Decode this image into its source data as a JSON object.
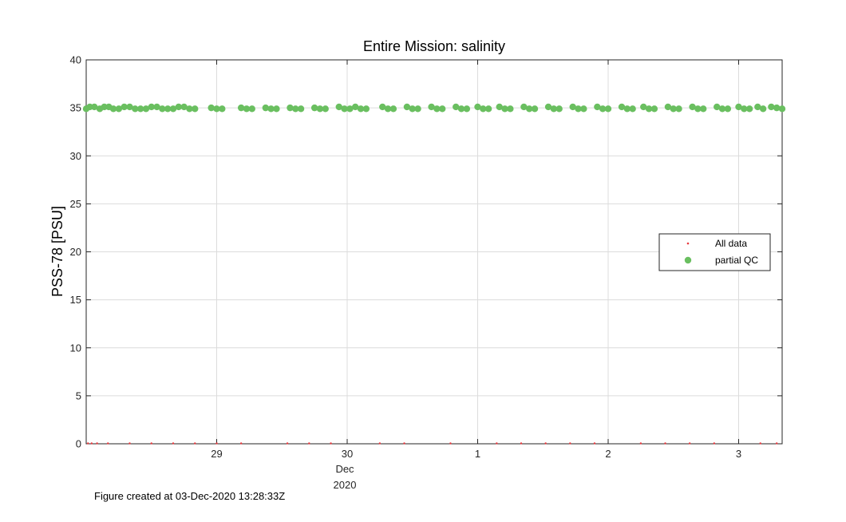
{
  "chart_data": {
    "type": "scatter",
    "title": "Entire Mission: salinity",
    "ylabel": "PSS-78 [PSU]",
    "xlabel": "",
    "x_date_label": "Dec",
    "x_year_label": "2020",
    "xlim": [
      "2020-11-28T00:00Z",
      "2020-12-03T08:00Z"
    ],
    "ylim": [
      0,
      40
    ],
    "yticks": [
      0,
      5,
      10,
      15,
      20,
      25,
      30,
      35,
      40
    ],
    "xticks": [
      {
        "t": "2020-11-29T00:00Z",
        "label": "29"
      },
      {
        "t": "2020-11-30T00:00Z",
        "label": "30"
      },
      {
        "t": "2020-12-01T00:00Z",
        "label": "1"
      },
      {
        "t": "2020-12-02T00:00Z",
        "label": "2"
      },
      {
        "t": "2020-12-03T00:00Z",
        "label": "3"
      }
    ],
    "grid": true,
    "legend_position": "right",
    "series": [
      {
        "name": "All data",
        "marker": "dot",
        "color": "#e8383d",
        "points": [
          [
            "2020-11-28T00:20Z",
            0
          ],
          [
            "2020-11-28T01:00Z",
            0
          ],
          [
            "2020-11-28T02:00Z",
            0
          ],
          [
            "2020-11-28T04:00Z",
            0
          ],
          [
            "2020-11-28T08:00Z",
            0
          ],
          [
            "2020-11-28T12:00Z",
            0
          ],
          [
            "2020-11-28T16:00Z",
            0
          ],
          [
            "2020-11-28T20:00Z",
            0
          ],
          [
            "2020-11-29T00:00Z",
            0
          ],
          [
            "2020-11-29T04:30Z",
            0
          ],
          [
            "2020-11-29T13:00Z",
            0
          ],
          [
            "2020-11-29T17:00Z",
            0
          ],
          [
            "2020-11-29T21:00Z",
            0
          ],
          [
            "2020-11-30T06:00Z",
            0
          ],
          [
            "2020-11-30T10:30Z",
            0
          ],
          [
            "2020-11-30T19:00Z",
            0
          ],
          [
            "2020-12-01T03:30Z",
            0
          ],
          [
            "2020-12-01T08:00Z",
            0
          ],
          [
            "2020-12-01T12:30Z",
            0
          ],
          [
            "2020-12-01T17:00Z",
            0
          ],
          [
            "2020-12-01T21:30Z",
            0
          ],
          [
            "2020-12-02T06:00Z",
            0
          ],
          [
            "2020-12-02T10:30Z",
            0
          ],
          [
            "2020-12-02T15:00Z",
            0
          ],
          [
            "2020-12-02T19:30Z",
            0
          ],
          [
            "2020-12-03T04:00Z",
            0
          ],
          [
            "2020-12-03T07:00Z",
            0
          ]
        ]
      },
      {
        "name": "partial QC",
        "marker": "circle",
        "color": "#6abf60",
        "points": [
          [
            "2020-11-28T00:00Z",
            34.9
          ],
          [
            "2020-11-28T00:40Z",
            35.1
          ],
          [
            "2020-11-28T01:30Z",
            35.1
          ],
          [
            "2020-11-28T02:30Z",
            34.9
          ],
          [
            "2020-11-28T03:20Z",
            35.1
          ],
          [
            "2020-11-28T04:10Z",
            35.1
          ],
          [
            "2020-11-28T05:00Z",
            34.9
          ],
          [
            "2020-11-28T06:00Z",
            34.9
          ],
          [
            "2020-11-28T07:00Z",
            35.1
          ],
          [
            "2020-11-28T08:00Z",
            35.1
          ],
          [
            "2020-11-28T09:00Z",
            34.9
          ],
          [
            "2020-11-28T10:00Z",
            34.9
          ],
          [
            "2020-11-28T11:00Z",
            34.9
          ],
          [
            "2020-11-28T12:00Z",
            35.1
          ],
          [
            "2020-11-28T13:00Z",
            35.1
          ],
          [
            "2020-11-28T14:00Z",
            34.9
          ],
          [
            "2020-11-28T15:00Z",
            34.9
          ],
          [
            "2020-11-28T16:00Z",
            34.9
          ],
          [
            "2020-11-28T17:00Z",
            35.1
          ],
          [
            "2020-11-28T18:00Z",
            35.1
          ],
          [
            "2020-11-28T19:00Z",
            34.9
          ],
          [
            "2020-11-28T20:00Z",
            34.9
          ],
          [
            "2020-11-28T23:00Z",
            35.0
          ],
          [
            "2020-11-29T00:00Z",
            34.9
          ],
          [
            "2020-11-29T01:00Z",
            34.9
          ],
          [
            "2020-11-29T04:30Z",
            35.0
          ],
          [
            "2020-11-29T05:30Z",
            34.9
          ],
          [
            "2020-11-29T06:30Z",
            34.9
          ],
          [
            "2020-11-29T09:00Z",
            35.0
          ],
          [
            "2020-11-29T10:00Z",
            34.9
          ],
          [
            "2020-11-29T11:00Z",
            34.9
          ],
          [
            "2020-11-29T13:30Z",
            35.0
          ],
          [
            "2020-11-29T14:30Z",
            34.9
          ],
          [
            "2020-11-29T15:30Z",
            34.9
          ],
          [
            "2020-11-29T18:00Z",
            35.0
          ],
          [
            "2020-11-29T19:00Z",
            34.9
          ],
          [
            "2020-11-29T20:00Z",
            34.9
          ],
          [
            "2020-11-29T22:30Z",
            35.1
          ],
          [
            "2020-11-29T23:30Z",
            34.9
          ],
          [
            "2020-11-30T00:30Z",
            34.9
          ],
          [
            "2020-11-30T01:30Z",
            35.1
          ],
          [
            "2020-11-30T02:30Z",
            34.9
          ],
          [
            "2020-11-30T03:30Z",
            34.9
          ],
          [
            "2020-11-30T06:30Z",
            35.1
          ],
          [
            "2020-11-30T07:30Z",
            34.9
          ],
          [
            "2020-11-30T08:30Z",
            34.9
          ],
          [
            "2020-11-30T11:00Z",
            35.1
          ],
          [
            "2020-11-30T12:00Z",
            34.9
          ],
          [
            "2020-11-30T13:00Z",
            34.9
          ],
          [
            "2020-11-30T15:30Z",
            35.1
          ],
          [
            "2020-11-30T16:30Z",
            34.9
          ],
          [
            "2020-11-30T17:30Z",
            34.9
          ],
          [
            "2020-11-30T20:00Z",
            35.1
          ],
          [
            "2020-11-30T21:00Z",
            34.9
          ],
          [
            "2020-11-30T22:00Z",
            34.9
          ],
          [
            "2020-12-01T00:00Z",
            35.1
          ],
          [
            "2020-12-01T01:00Z",
            34.9
          ],
          [
            "2020-12-01T02:00Z",
            34.9
          ],
          [
            "2020-12-01T04:00Z",
            35.1
          ],
          [
            "2020-12-01T05:00Z",
            34.9
          ],
          [
            "2020-12-01T06:00Z",
            34.9
          ],
          [
            "2020-12-01T08:30Z",
            35.1
          ],
          [
            "2020-12-01T09:30Z",
            34.9
          ],
          [
            "2020-12-01T10:30Z",
            34.9
          ],
          [
            "2020-12-01T13:00Z",
            35.1
          ],
          [
            "2020-12-01T14:00Z",
            34.9
          ],
          [
            "2020-12-01T15:00Z",
            34.9
          ],
          [
            "2020-12-01T17:30Z",
            35.1
          ],
          [
            "2020-12-01T18:30Z",
            34.9
          ],
          [
            "2020-12-01T19:30Z",
            34.9
          ],
          [
            "2020-12-01T22:00Z",
            35.1
          ],
          [
            "2020-12-01T23:00Z",
            34.9
          ],
          [
            "2020-12-02T00:00Z",
            34.9
          ],
          [
            "2020-12-02T02:30Z",
            35.1
          ],
          [
            "2020-12-02T03:30Z",
            34.9
          ],
          [
            "2020-12-02T04:30Z",
            34.9
          ],
          [
            "2020-12-02T06:30Z",
            35.1
          ],
          [
            "2020-12-02T07:30Z",
            34.9
          ],
          [
            "2020-12-02T08:30Z",
            34.9
          ],
          [
            "2020-12-02T11:00Z",
            35.1
          ],
          [
            "2020-12-02T12:00Z",
            34.9
          ],
          [
            "2020-12-02T13:00Z",
            34.9
          ],
          [
            "2020-12-02T15:30Z",
            35.1
          ],
          [
            "2020-12-02T16:30Z",
            34.9
          ],
          [
            "2020-12-02T17:30Z",
            34.9
          ],
          [
            "2020-12-02T20:00Z",
            35.1
          ],
          [
            "2020-12-02T21:00Z",
            34.9
          ],
          [
            "2020-12-02T22:00Z",
            34.9
          ],
          [
            "2020-12-03T00:00Z",
            35.1
          ],
          [
            "2020-12-03T01:00Z",
            34.9
          ],
          [
            "2020-12-03T02:00Z",
            34.9
          ],
          [
            "2020-12-03T03:30Z",
            35.1
          ],
          [
            "2020-12-03T04:30Z",
            34.9
          ],
          [
            "2020-12-03T06:00Z",
            35.1
          ],
          [
            "2020-12-03T07:00Z",
            35.0
          ],
          [
            "2020-12-03T08:00Z",
            34.9
          ]
        ]
      }
    ]
  },
  "footer": {
    "created_text": "Figure created at 03-Dec-2020 13:28:33Z"
  }
}
